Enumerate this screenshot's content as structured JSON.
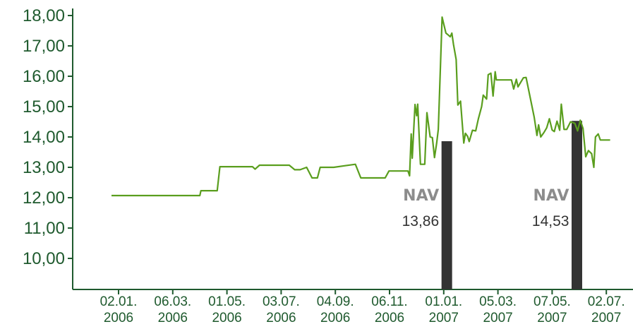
{
  "chart_data": {
    "type": "line",
    "title": "",
    "xlabel": "",
    "ylabel": "",
    "ylim": [
      9.0,
      18.0
    ],
    "y_ticks": [
      "10,00",
      "11,00",
      "12,00",
      "13,00",
      "14,00",
      "15,00",
      "16,00",
      "17,00",
      "18,00"
    ],
    "x_ticks": [
      {
        "line1": "02.01.",
        "line2": "2006"
      },
      {
        "line1": "06.03.",
        "line2": "2006"
      },
      {
        "line1": "01.05.",
        "line2": "2006"
      },
      {
        "line1": "03.07.",
        "line2": "2006"
      },
      {
        "line1": "04.09.",
        "line2": "2006"
      },
      {
        "line1": "06.11.",
        "line2": "2006"
      },
      {
        "line1": "01.01.",
        "line2": "2007"
      },
      {
        "line1": "05.03.",
        "line2": "2007"
      },
      {
        "line1": "07.05.",
        "line2": "2007"
      },
      {
        "line1": "02.07.",
        "line2": "2007"
      }
    ],
    "grid": false,
    "colors": {
      "line": "#5a9e1e",
      "bar": "#333333",
      "axis": "#1f5a2e"
    },
    "series": [
      {
        "values": [
          [
            0.0,
            12.07
          ],
          [
            0.4,
            12.07
          ],
          [
            1.0,
            12.07
          ],
          [
            1.5,
            12.07
          ],
          [
            1.63,
            12.07
          ],
          [
            1.65,
            12.23
          ],
          [
            1.7,
            12.23
          ],
          [
            1.95,
            12.23
          ],
          [
            2.0,
            13.02
          ],
          [
            2.3,
            13.02
          ],
          [
            2.5,
            13.02
          ],
          [
            2.6,
            13.02
          ],
          [
            2.65,
            12.94
          ],
          [
            2.73,
            13.07
          ],
          [
            3.0,
            13.07
          ],
          [
            3.28,
            13.07
          ],
          [
            3.38,
            12.92
          ],
          [
            3.48,
            12.92
          ],
          [
            3.6,
            13.0
          ],
          [
            3.7,
            12.65
          ],
          [
            3.8,
            12.65
          ],
          [
            3.85,
            13.0
          ],
          [
            4.0,
            13.0
          ],
          [
            4.1,
            13.0
          ],
          [
            4.3,
            13.05
          ],
          [
            4.5,
            13.1
          ],
          [
            4.6,
            12.65
          ],
          [
            4.8,
            12.65
          ],
          [
            5.0,
            12.65
          ],
          [
            5.05,
            12.65
          ],
          [
            5.12,
            12.88
          ],
          [
            5.3,
            12.88
          ],
          [
            5.47,
            12.88
          ],
          [
            5.5,
            12.72
          ],
          [
            5.53,
            14.1
          ],
          [
            5.55,
            13.3
          ],
          [
            5.6,
            15.07
          ],
          [
            5.63,
            14.7
          ],
          [
            5.65,
            15.08
          ],
          [
            5.7,
            13.1
          ],
          [
            5.73,
            13.1
          ],
          [
            5.78,
            13.1
          ],
          [
            5.82,
            14.8
          ],
          [
            5.88,
            14.0
          ],
          [
            5.92,
            13.98
          ],
          [
            5.96,
            13.32
          ],
          [
            6.0,
            13.8
          ],
          [
            6.03,
            14.25
          ],
          [
            6.1,
            17.95
          ],
          [
            6.13,
            17.72
          ],
          [
            6.17,
            17.42
          ],
          [
            6.2,
            17.38
          ],
          [
            6.25,
            17.3
          ],
          [
            6.28,
            17.42
          ],
          [
            6.31,
            17.05
          ],
          [
            6.36,
            16.55
          ],
          [
            6.39,
            15.05
          ],
          [
            6.44,
            15.18
          ],
          [
            6.5,
            13.8
          ],
          [
            6.53,
            14.12
          ],
          [
            6.57,
            14.02
          ],
          [
            6.6,
            13.85
          ],
          [
            6.66,
            14.22
          ],
          [
            6.72,
            14.2
          ],
          [
            6.77,
            14.6
          ],
          [
            6.83,
            15.0
          ],
          [
            6.86,
            15.38
          ],
          [
            6.92,
            15.25
          ],
          [
            6.95,
            16.05
          ],
          [
            7.0,
            16.1
          ],
          [
            7.04,
            15.35
          ],
          [
            7.08,
            16.15
          ],
          [
            7.1,
            15.88
          ],
          [
            7.2,
            15.88
          ],
          [
            7.3,
            15.88
          ],
          [
            7.38,
            15.88
          ],
          [
            7.42,
            15.58
          ],
          [
            7.47,
            15.9
          ],
          [
            7.5,
            15.65
          ],
          [
            7.6,
            15.95
          ],
          [
            7.65,
            15.96
          ],
          [
            7.8,
            14.65
          ],
          [
            7.85,
            14.05
          ],
          [
            7.88,
            14.4
          ],
          [
            7.92,
            14.0
          ],
          [
            7.98,
            14.15
          ],
          [
            8.03,
            14.3
          ],
          [
            8.08,
            14.6
          ],
          [
            8.13,
            14.23
          ],
          [
            8.17,
            14.18
          ],
          [
            8.22,
            14.52
          ],
          [
            8.27,
            14.22
          ],
          [
            8.3,
            15.08
          ],
          [
            8.35,
            14.25
          ],
          [
            8.4,
            14.25
          ],
          [
            8.47,
            14.5
          ],
          [
            8.55,
            14.45
          ],
          [
            8.6,
            14.2
          ],
          [
            8.65,
            14.55
          ],
          [
            8.7,
            14.28
          ],
          [
            8.75,
            13.35
          ],
          [
            8.8,
            13.55
          ],
          [
            8.86,
            13.45
          ],
          [
            8.9,
            13.0
          ],
          [
            8.93,
            14.0
          ],
          [
            8.98,
            14.1
          ],
          [
            9.02,
            13.9
          ],
          [
            9.1,
            13.9
          ],
          [
            9.2,
            13.9
          ]
        ]
      }
    ],
    "nav_markers": [
      {
        "label": "NAV",
        "value_text": "13,86",
        "value": 13.86,
        "x": 6.2
      },
      {
        "label": "NAV",
        "value_text": "14,53",
        "value": 14.53,
        "x": 8.6
      }
    ]
  }
}
